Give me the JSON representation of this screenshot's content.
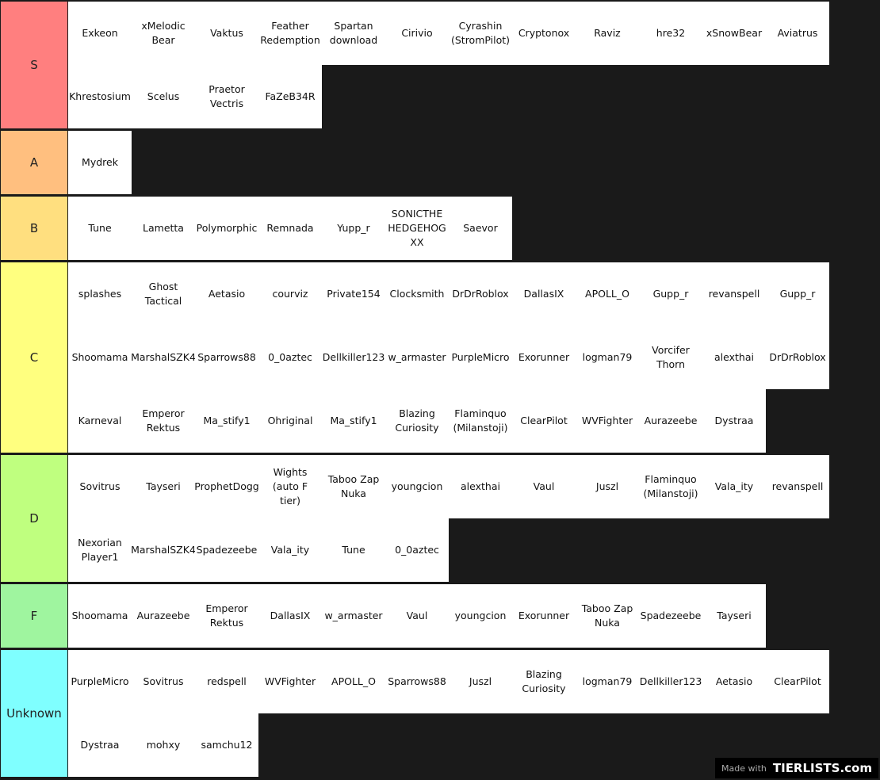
{
  "tiers": [
    {
      "label": "S",
      "color": "#ff7f7f",
      "items": [
        "Exkeon",
        "xMelodic Bear",
        "Vaktus",
        "Feather Redemption",
        "Spartan download",
        "Cirivio",
        "Cyrashin (StromPilot)",
        "Cryptonox",
        "Raviz",
        "hre32",
        "xSnowBear",
        "Aviatrus",
        "Khrestosium",
        "Scelus",
        "Praetor Vectris",
        "FaZeB34R"
      ]
    },
    {
      "label": "A",
      "color": "#ffbf7f",
      "items": [
        "Mydrek"
      ]
    },
    {
      "label": "B",
      "color": "#ffdf7f",
      "items": [
        "Tune",
        "Lametta",
        "Polymorphic",
        "Remnada",
        "Yupp_r",
        "SONICTHE HEDGEHOG XX",
        "Saevor"
      ]
    },
    {
      "label": "C",
      "color": "#ffff7f",
      "items": [
        "splashes",
        "Ghost Tactical",
        "Aetasio",
        "courviz",
        "Private154",
        "Clocksmith",
        "DrDrRoblox",
        "DallasIX",
        "APOLL_O",
        "Gupp_r",
        "revanspell",
        "Gupp_r",
        "Shoomama",
        "MarshalSZK4",
        "Sparrows88",
        "0_0aztec",
        "Dellkiller123",
        "w_armaster",
        "PurpleMicro",
        "Exorunner",
        "logman79",
        "Vorcifer Thorn",
        "alexthai",
        "DrDrRoblox",
        "Karneval",
        "Emperor Rektus",
        "Ma_stify1",
        "Ohriginal",
        "Ma_stify1",
        "Blazing Curiosity",
        "Flaminquo (Milanstoji)",
        "ClearPilot",
        "WVFighter",
        "Aurazeebe",
        "Dystraa"
      ]
    },
    {
      "label": "D",
      "color": "#bfff7f",
      "items": [
        "Sovitrus",
        "Tayseri",
        "ProphetDogg",
        "Wights (auto F tier)",
        "Taboo Zap Nuka",
        "youngcion",
        "alexthai",
        "Vaul",
        "Juszl",
        "Flaminquo (Milanstoji)",
        "Vala_ity",
        "revanspell",
        "Nexorian Player1",
        "MarshalSZK4",
        "Spadezeebe",
        "Vala_ity",
        "Tune",
        "0_0aztec"
      ]
    },
    {
      "label": "F",
      "color": "#9ff59f",
      "items": [
        "Shoomama",
        "Aurazeebe",
        "Emperor Rektus",
        "DallasIX",
        "w_armaster",
        "Vaul",
        "youngcion",
        "Exorunner",
        "Taboo Zap Nuka",
        "Spadezeebe",
        "Tayseri"
      ]
    },
    {
      "label": "Unknown",
      "color": "#7fffff",
      "items": [
        "PurpleMicro",
        "Sovitrus",
        "redspell",
        "WVFighter",
        "APOLL_O",
        "Sparrows88",
        "Juszl",
        "Blazing Curiosity",
        "logman79",
        "Dellkiller123",
        "Aetasio",
        "ClearPilot",
        "Dystraa",
        "mohxy",
        "samchu12"
      ]
    }
  ],
  "watermark": {
    "prefix": "Made with",
    "brand": "TIERLISTS.com"
  }
}
